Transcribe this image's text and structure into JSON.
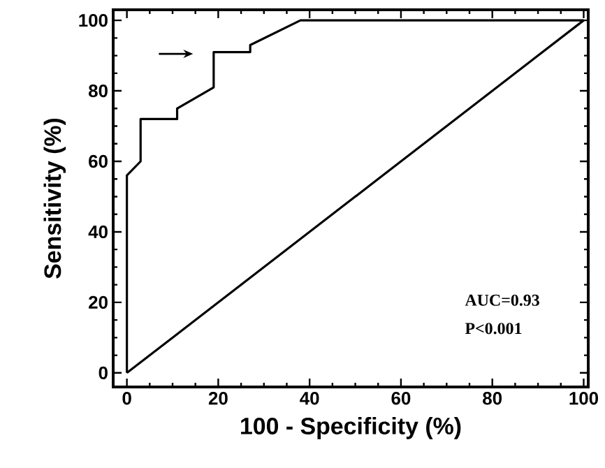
{
  "chart_data": {
    "type": "line",
    "xlabel": "100 - Specificity (%)",
    "ylabel": "Sensitivity (%)",
    "series": [
      {
        "x": [
          0,
          0,
          3,
          3,
          11,
          11,
          19,
          19,
          27,
          27,
          38,
          100
        ],
        "values": [
          0,
          56,
          60,
          72,
          72,
          75,
          81,
          91,
          91,
          93,
          100,
          100
        ],
        "color": "#000000"
      },
      {
        "x": [
          0,
          100
        ],
        "values": [
          0,
          100
        ],
        "color": "#000000"
      }
    ],
    "xlim": [
      -3,
      101
    ],
    "ylim": [
      -4,
      103
    ],
    "xticks": [
      0,
      20,
      40,
      60,
      80,
      100
    ],
    "yticks": [
      0,
      20,
      40,
      60,
      80,
      100
    ],
    "annotations": [
      "AUC=0.93",
      "P<0.001"
    ],
    "marker": "none",
    "line_style": "solid"
  }
}
